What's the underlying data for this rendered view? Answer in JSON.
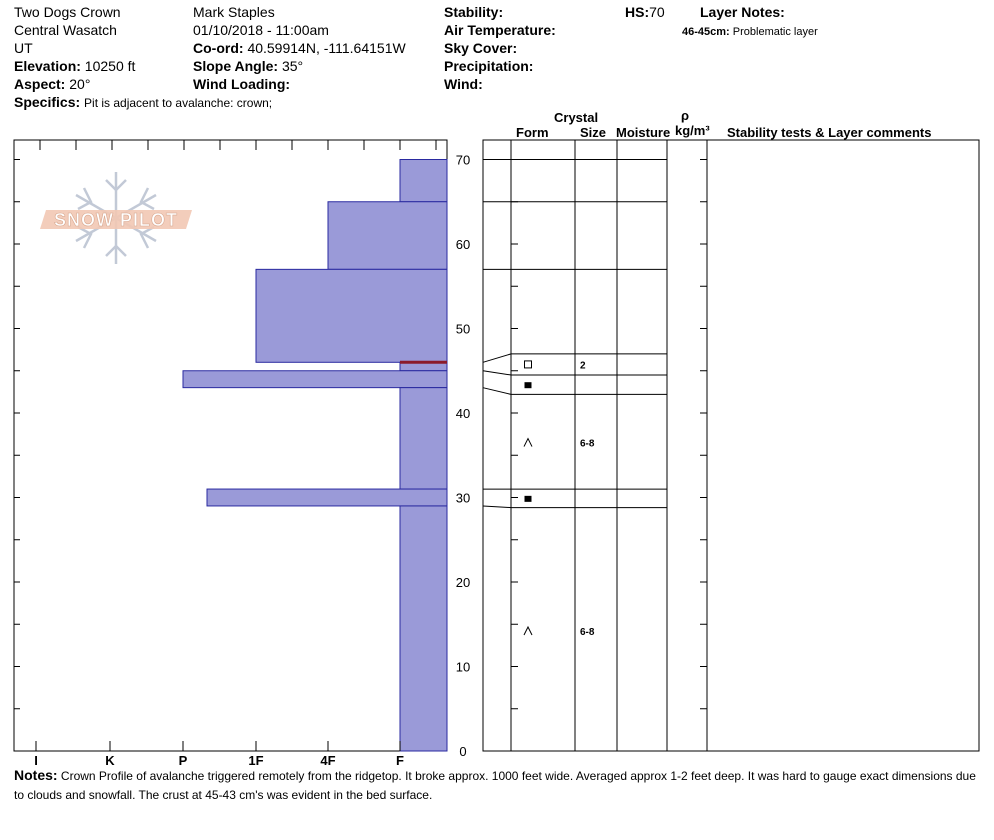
{
  "header": {
    "location": "Two Dogs Crown",
    "range": "Central Wasatch",
    "state": "UT",
    "elevation_label": "Elevation:",
    "elevation": "10250 ft",
    "aspect_label": "Aspect:",
    "aspect": "20°",
    "observer": "Mark Staples",
    "datetime": "01/10/2018 - 11:00am",
    "coord_label": "Co-ord:",
    "coord": "40.59914N, -111.64151W",
    "slope_label": "Slope Angle:",
    "slope": "35°",
    "wind_loading_label": "Wind Loading:",
    "wind_loading": "",
    "stability_label": "Stability:",
    "stability": "",
    "air_temp_label": "Air Temperature:",
    "sky_label": "Sky Cover:",
    "precip_label": "Precipitation:",
    "wind_label": "Wind:",
    "hs_label": "HS:",
    "hs": "70",
    "layer_notes_label": "Layer Notes:",
    "layer_note_range": "46-45cm:",
    "layer_note_text": "Problematic layer",
    "specifics_label": "Specifics:",
    "specifics": "Pit is adjacent to avalanche: crown;"
  },
  "logo": {
    "text": "SNOW PILOT"
  },
  "columns": {
    "crystal": "Crystal",
    "form": "Form",
    "size": "Size",
    "moisture": "Moisture",
    "rho": "ρ",
    "density_unit": "kg/m³",
    "stability_comments": "Stability tests & Layer comments"
  },
  "notes": {
    "label": "Notes:",
    "text": "Crown Profile of avalanche triggered remotely from the ridgetop.  It broke approx. 1000 feet wide. Averaged approx 1-2 feet deep. It was hard to gauge exact dimensions due to clouds and snowfall. The crust at 45-43 cm's was evident in the bed surface."
  },
  "chart_data": {
    "type": "bar",
    "orientation": "horizontal",
    "description_axis_x": "hand hardness",
    "x_categories": [
      "I",
      "K",
      "P",
      "1F",
      "4F",
      "F"
    ],
    "y_ticks": [
      0,
      10,
      20,
      30,
      40,
      50,
      60,
      70
    ],
    "ylim": [
      0,
      72
    ],
    "hardness_layers": [
      {
        "top": 70,
        "bottom": 65,
        "hardness": "F"
      },
      {
        "top": 65,
        "bottom": 57,
        "hardness": "4F"
      },
      {
        "top": 57,
        "bottom": 46,
        "hardness": "1F"
      },
      {
        "top": 46,
        "bottom": 45,
        "hardness": "F",
        "marked": true
      },
      {
        "top": 45,
        "bottom": 43,
        "hardness": "P"
      },
      {
        "top": 43,
        "bottom": 31,
        "hardness": "F"
      },
      {
        "top": 31,
        "bottom": 29,
        "hardness": "P+"
      },
      {
        "top": 29,
        "bottom": 0,
        "hardness": "F"
      }
    ],
    "profile_layers": [
      {
        "top": 70,
        "bottom": 65
      },
      {
        "top": 65,
        "bottom": 57
      },
      {
        "top": 57,
        "bottom": 46
      },
      {
        "top": 46,
        "bottom": 45,
        "form": "square",
        "size": "2"
      },
      {
        "top": 45,
        "bottom": 43,
        "form": "filled-square"
      },
      {
        "top": 43,
        "bottom": 31,
        "form": "caret",
        "size": "6-8"
      },
      {
        "top": 31,
        "bottom": 29,
        "form": "filled-square"
      },
      {
        "top": 29,
        "bottom": 0,
        "form": "caret",
        "size": "6-8"
      }
    ],
    "colors": {
      "bar_fill": "#9a9ad8",
      "bar_stroke": "#2a2aa0",
      "marker": "#8b1a2a"
    }
  }
}
